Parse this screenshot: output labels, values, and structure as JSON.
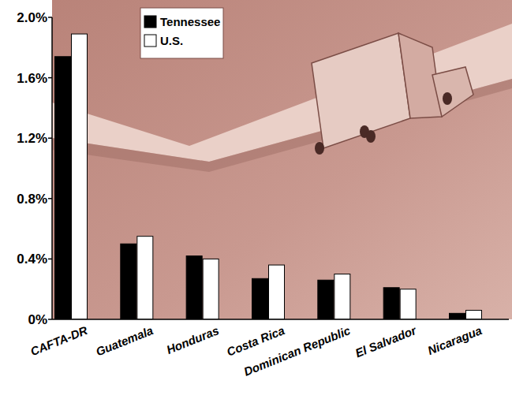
{
  "chart_data": {
    "type": "bar",
    "categories": [
      "CAFTA-DR",
      "Guatemala",
      "Honduras",
      "Costa Rica",
      "Dominican Republic",
      "El Salvador",
      "Nicaragua"
    ],
    "series": [
      {
        "name": "Tennessee",
        "color": "#000000",
        "values": [
          1.74,
          0.5,
          0.42,
          0.27,
          0.26,
          0.21,
          0.04
        ]
      },
      {
        "name": "U.S.",
        "color": "#ffffff",
        "values": [
          1.89,
          0.55,
          0.4,
          0.36,
          0.3,
          0.2,
          0.06
        ]
      }
    ],
    "ylim": [
      0,
      2.0
    ],
    "yticks": [
      {
        "value": 0,
        "label": "0%"
      },
      {
        "value": 0.4,
        "label": "0.4%"
      },
      {
        "value": 0.8,
        "label": "0.8%"
      },
      {
        "value": 1.2,
        "label": "1.2%"
      },
      {
        "value": 1.6,
        "label": "1.6%"
      },
      {
        "value": 2.0,
        "label": "2.0%"
      }
    ],
    "grid": false,
    "legend": "top-left"
  }
}
